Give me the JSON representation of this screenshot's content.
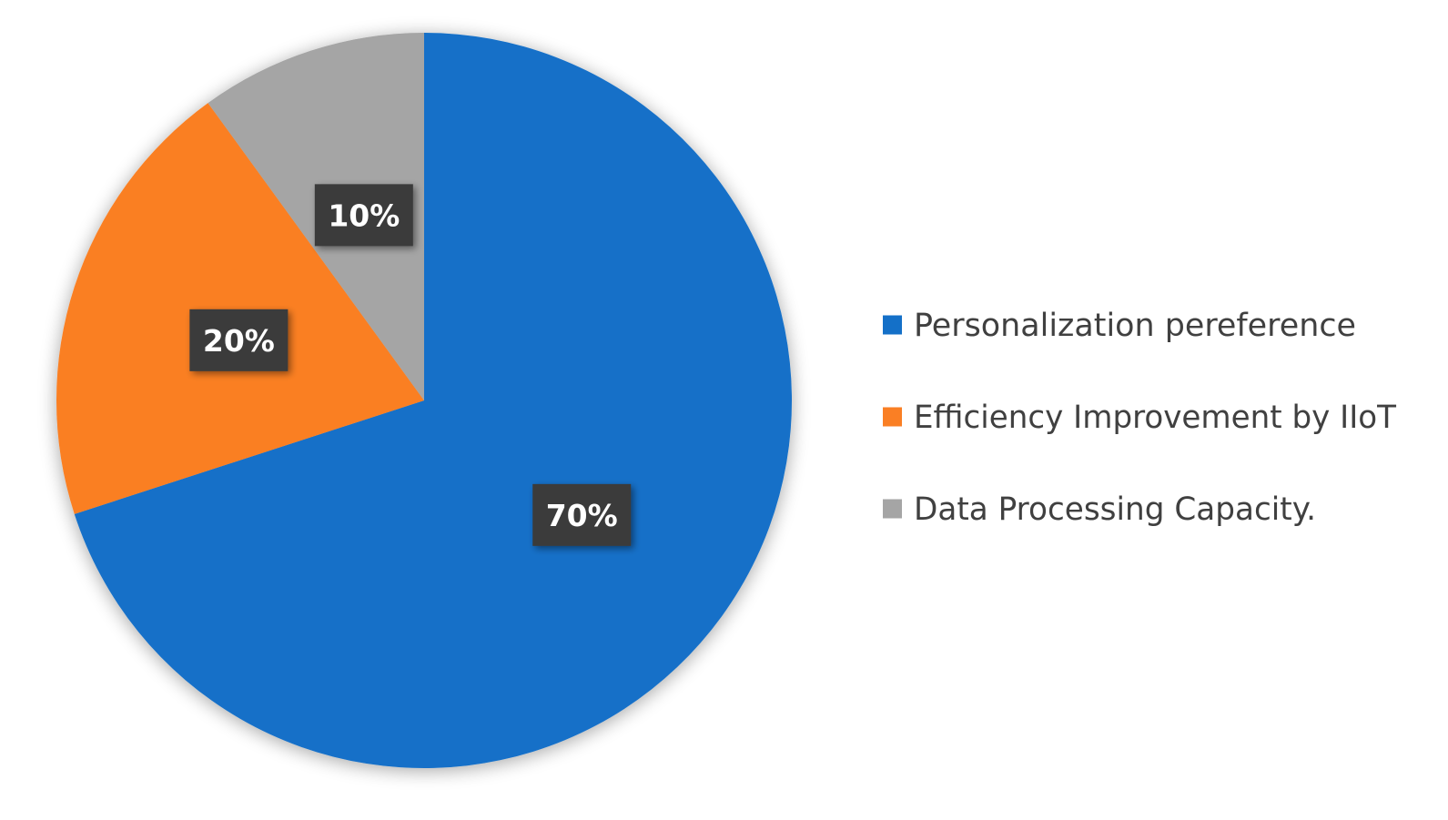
{
  "chart_data": {
    "type": "pie",
    "title": "",
    "slices": [
      {
        "label": "Personalization pereference",
        "value": 70,
        "display": "70%",
        "color": "#1470C8"
      },
      {
        "label": "Efficiency Improvement by IIoT",
        "value": 20,
        "display": "20%",
        "color": "#FA7F24"
      },
      {
        "label": "Data Processing Capacity.",
        "value": 10,
        "display": "10%",
        "color": "#A5A5A5"
      }
    ],
    "start_angle_deg": 0,
    "direction": "clockwise",
    "legend_position": "right",
    "data_label_box_color": "#3B3B3B"
  }
}
